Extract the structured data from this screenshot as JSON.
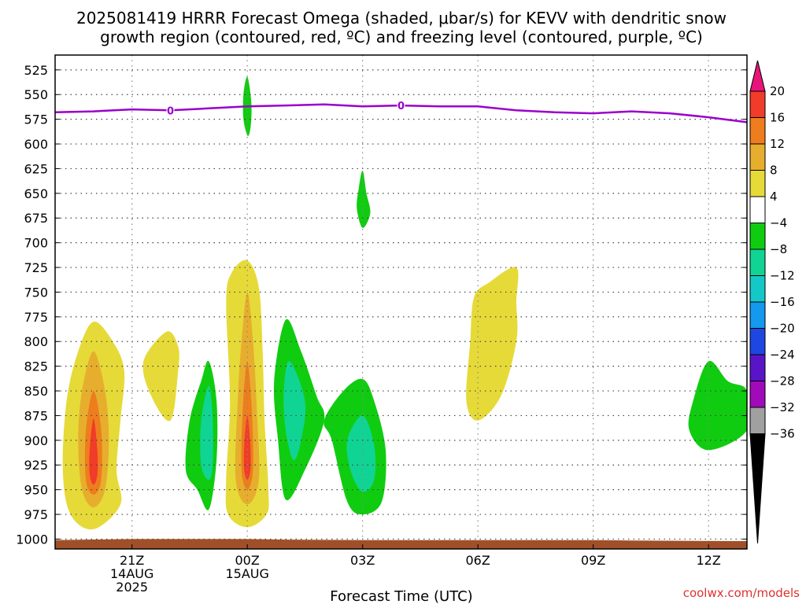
{
  "chart_data": {
    "type": "heatmap",
    "title_lines": [
      "2025081419 HRRR Forecast Omega (shaded, μbar/s) for KEVV with dendritic snow",
      "growth region (contoured, red, ºC) and freezing level (contoured, purple, ºC)"
    ],
    "xlabel": "Forecast Time (UTC)",
    "ylabel": "",
    "credit": "coolwx.com/models",
    "x_range_hours": [
      -5,
      13
    ],
    "y_range_mb": [
      1010,
      510
    ],
    "y_ticks": [
      525,
      550,
      575,
      600,
      625,
      650,
      675,
      700,
      725,
      750,
      775,
      800,
      825,
      850,
      875,
      900,
      925,
      950,
      975,
      1000
    ],
    "x_ticks": [
      {
        "h": -3,
        "lines": [
          "21Z",
          "14AUG",
          "2025"
        ]
      },
      {
        "h": 0,
        "lines": [
          "00Z",
          "15AUG"
        ]
      },
      {
        "h": 3,
        "lines": [
          "03Z"
        ]
      },
      {
        "h": 6,
        "lines": [
          "06Z"
        ]
      },
      {
        "h": 9,
        "lines": [
          "09Z"
        ]
      },
      {
        "h": 12,
        "lines": [
          "12Z"
        ]
      }
    ],
    "grid": true,
    "colorbar": {
      "labels": [
        "20",
        "16",
        "12",
        "8",
        "4",
        "-4",
        "-8",
        "-12",
        "-16",
        "-20",
        "-24",
        "-28",
        "-32",
        "-36"
      ],
      "colors": [
        "#e8147a",
        "#f03c28",
        "#ee7d1e",
        "#e7ae2e",
        "#e6da38",
        "#ffffff",
        "#10cc10",
        "#10d494",
        "#14c8c8",
        "#1499ee",
        "#1e46e0",
        "#5a14c8",
        "#a00ab8",
        "#a0a0a0",
        "#000000"
      ]
    },
    "freezing_level": {
      "color": "#9a00cc",
      "label": "0",
      "label_points": [
        [
          -2,
          566
        ],
        [
          4,
          561
        ]
      ],
      "points": [
        [
          -5,
          568
        ],
        [
          -4,
          567
        ],
        [
          -3,
          565
        ],
        [
          -2,
          566
        ],
        [
          -1,
          564
        ],
        [
          0,
          562
        ],
        [
          1,
          561
        ],
        [
          2,
          560
        ],
        [
          3,
          562
        ],
        [
          4,
          561
        ],
        [
          5,
          562
        ],
        [
          6,
          562
        ],
        [
          7,
          566
        ],
        [
          8,
          568
        ],
        [
          9,
          569
        ],
        [
          10,
          567
        ],
        [
          11,
          569
        ],
        [
          12,
          573
        ],
        [
          13,
          578
        ]
      ]
    },
    "surface": {
      "color": "#a05028",
      "points": [
        [
          -5,
          1001
        ],
        [
          -3,
          1000
        ],
        [
          0,
          1000
        ],
        [
          1,
          1000.5
        ],
        [
          3,
          1001
        ],
        [
          6,
          1001
        ],
        [
          9,
          1001
        ],
        [
          10,
          1001.5
        ],
        [
          13,
          1002
        ]
      ]
    },
    "omega_regions": [
      {
        "color": "#e6da38",
        "points": [
          [
            -4.0,
            780
          ],
          [
            -3.5,
            800
          ],
          [
            -3.2,
            830
          ],
          [
            -3.3,
            880
          ],
          [
            -3.4,
            930
          ],
          [
            -3.3,
            965
          ],
          [
            -4.0,
            990
          ],
          [
            -4.6,
            975
          ],
          [
            -4.8,
            930
          ],
          [
            -4.7,
            860
          ],
          [
            -4.4,
            810
          ]
        ]
      },
      {
        "color": "#e7ae2e",
        "points": [
          [
            -4.0,
            810
          ],
          [
            -3.7,
            850
          ],
          [
            -3.6,
            900
          ],
          [
            -3.7,
            950
          ],
          [
            -4.0,
            968
          ],
          [
            -4.3,
            950
          ],
          [
            -4.4,
            900
          ],
          [
            -4.3,
            850
          ]
        ]
      },
      {
        "color": "#ee7d1e",
        "points": [
          [
            -4.0,
            850
          ],
          [
            -3.8,
            890
          ],
          [
            -3.8,
            940
          ],
          [
            -4.0,
            955
          ],
          [
            -4.2,
            940
          ],
          [
            -4.2,
            890
          ]
        ]
      },
      {
        "color": "#f03c28",
        "points": [
          [
            -4.0,
            878
          ],
          [
            -3.9,
            910
          ],
          [
            -3.9,
            935
          ],
          [
            -4.0,
            945
          ],
          [
            -4.1,
            935
          ],
          [
            -4.1,
            910
          ]
        ]
      },
      {
        "color": "#e6da38",
        "points": [
          [
            -2.1,
            790
          ],
          [
            -1.8,
            805
          ],
          [
            -1.8,
            830
          ],
          [
            -2.0,
            880
          ],
          [
            -2.5,
            855
          ],
          [
            -2.7,
            820
          ]
        ]
      },
      {
        "color": "#e6da38",
        "points": [
          [
            0,
            718
          ],
          [
            0.3,
            745
          ],
          [
            0.4,
            810
          ],
          [
            0.45,
            880
          ],
          [
            0.55,
            950
          ],
          [
            0.5,
            975
          ],
          [
            0,
            988
          ],
          [
            -0.5,
            975
          ],
          [
            -0.55,
            940
          ],
          [
            -0.45,
            860
          ],
          [
            -0.55,
            760
          ],
          [
            -0.4,
            730
          ]
        ]
      },
      {
        "color": "#e7ae2e",
        "points": [
          [
            0,
            750
          ],
          [
            0.15,
            800
          ],
          [
            0.25,
            870
          ],
          [
            0.3,
            940
          ],
          [
            0,
            965
          ],
          [
            -0.3,
            940
          ],
          [
            -0.25,
            860
          ],
          [
            -0.15,
            800
          ]
        ]
      },
      {
        "color": "#ee7d1e",
        "points": [
          [
            0,
            820
          ],
          [
            0.12,
            870
          ],
          [
            0.15,
            930
          ],
          [
            0,
            950
          ],
          [
            -0.15,
            930
          ],
          [
            -0.12,
            870
          ]
        ]
      },
      {
        "color": "#f03c28",
        "points": [
          [
            0,
            875
          ],
          [
            0.08,
            905
          ],
          [
            0.08,
            930
          ],
          [
            0,
            940
          ],
          [
            -0.08,
            930
          ],
          [
            -0.08,
            905
          ]
        ]
      },
      {
        "color": "#10cc10",
        "points": [
          [
            -1.0,
            820
          ],
          [
            -0.8,
            860
          ],
          [
            -0.8,
            920
          ],
          [
            -1.0,
            970
          ],
          [
            -1.3,
            950
          ],
          [
            -1.6,
            930
          ],
          [
            -1.5,
            880
          ],
          [
            -1.2,
            840
          ]
        ]
      },
      {
        "color": "#10d494",
        "points": [
          [
            -1.0,
            845
          ],
          [
            -0.9,
            880
          ],
          [
            -0.9,
            925
          ],
          [
            -1.0,
            940
          ],
          [
            -1.2,
            925
          ],
          [
            -1.2,
            880
          ]
        ]
      },
      {
        "color": "#10cc10",
        "points": [
          [
            1.0,
            778
          ],
          [
            1.4,
            810
          ],
          [
            1.8,
            855
          ],
          [
            2.0,
            880
          ],
          [
            1.5,
            930
          ],
          [
            1.0,
            960
          ],
          [
            0.8,
            900
          ],
          [
            0.7,
            840
          ]
        ]
      },
      {
        "color": "#10d494",
        "points": [
          [
            1.1,
            820
          ],
          [
            1.5,
            860
          ],
          [
            1.4,
            900
          ],
          [
            1.2,
            920
          ],
          [
            1.0,
            890
          ],
          [
            0.95,
            850
          ]
        ]
      },
      {
        "color": "#10cc10",
        "points": [
          [
            3.0,
            838
          ],
          [
            3.3,
            860
          ],
          [
            3.6,
            910
          ],
          [
            3.5,
            962
          ],
          [
            3.0,
            975
          ],
          [
            2.6,
            962
          ],
          [
            2.2,
            900
          ],
          [
            2.0,
            880
          ],
          [
            2.5,
            850
          ]
        ]
      },
      {
        "color": "#10d494",
        "points": [
          [
            3.0,
            875
          ],
          [
            3.3,
            905
          ],
          [
            3.3,
            940
          ],
          [
            3.0,
            952
          ],
          [
            2.7,
            932
          ],
          [
            2.6,
            900
          ]
        ]
      },
      {
        "color": "#10cc10",
        "points": [
          [
            0,
            532
          ],
          [
            0.1,
            555
          ],
          [
            0.1,
            578
          ],
          [
            0.02,
            592
          ],
          [
            -0.1,
            575
          ],
          [
            -0.1,
            550
          ]
        ]
      },
      {
        "color": "#10cc10",
        "points": [
          [
            3.0,
            627
          ],
          [
            3.1,
            650
          ],
          [
            3.2,
            670
          ],
          [
            3.0,
            685
          ],
          [
            2.85,
            665
          ],
          [
            2.9,
            645
          ]
        ]
      },
      {
        "color": "#e6da38",
        "points": [
          [
            7.0,
            725
          ],
          [
            7.0,
            760
          ],
          [
            7.0,
            800
          ],
          [
            6.6,
            855
          ],
          [
            6.0,
            880
          ],
          [
            5.7,
            860
          ],
          [
            5.8,
            800
          ],
          [
            5.9,
            755
          ],
          [
            6.3,
            740
          ]
        ]
      },
      {
        "color": "#10cc10",
        "points": [
          [
            12.0,
            820
          ],
          [
            12.5,
            840
          ],
          [
            13.0,
            850
          ],
          [
            13.0,
            890
          ],
          [
            12.0,
            910
          ],
          [
            11.5,
            890
          ],
          [
            11.6,
            860
          ]
        ]
      }
    ]
  }
}
